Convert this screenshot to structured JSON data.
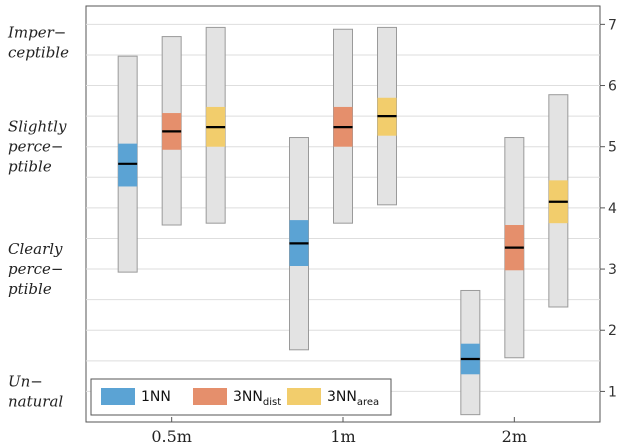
{
  "chart_data": {
    "type": "bar",
    "subtype": "floating-range-with-quartile-box-and-median",
    "categories": [
      "0.5m",
      "1m",
      "2m"
    ],
    "ylim": [
      0.5,
      7.3
    ],
    "yticks": [
      1,
      2,
      3,
      4,
      5,
      6,
      7
    ],
    "y_axis_side": "right",
    "grid": true,
    "level_labels": [
      {
        "lines": [
          "Imper−",
          "ceptible"
        ],
        "value": 6.7
      },
      {
        "lines": [
          "Slightly",
          "perce−",
          "ptible"
        ],
        "value": 5.0
      },
      {
        "lines": [
          "Clearly",
          "perce−",
          "ptible"
        ],
        "value": 3.0
      },
      {
        "lines": [
          "Un−",
          "natural"
        ],
        "value": 1.0
      }
    ],
    "series": [
      {
        "name": "1NN",
        "name_sub": "",
        "color": "#5ba3d4",
        "data": [
          {
            "min": 2.95,
            "q1": 4.35,
            "median": 4.72,
            "q3": 5.05,
            "max": 6.48
          },
          {
            "min": 1.68,
            "q1": 3.05,
            "median": 3.42,
            "q3": 3.8,
            "max": 5.15
          },
          {
            "min": 0.62,
            "q1": 1.28,
            "median": 1.53,
            "q3": 1.78,
            "max": 2.65
          }
        ]
      },
      {
        "name": "3NN",
        "name_sub": "dist",
        "color": "#e58f6c",
        "data": [
          {
            "min": 3.72,
            "q1": 4.95,
            "median": 5.25,
            "q3": 5.55,
            "max": 6.8
          },
          {
            "min": 3.75,
            "q1": 5.0,
            "median": 5.32,
            "q3": 5.65,
            "max": 6.92
          },
          {
            "min": 1.55,
            "q1": 2.98,
            "median": 3.35,
            "q3": 3.72,
            "max": 5.15
          }
        ]
      },
      {
        "name": "3NN",
        "name_sub": "area",
        "color": "#f2cd6c",
        "data": [
          {
            "min": 3.75,
            "q1": 5.0,
            "median": 5.32,
            "q3": 5.65,
            "max": 6.95
          },
          {
            "min": 4.05,
            "q1": 5.18,
            "median": 5.5,
            "q3": 5.8,
            "max": 6.95
          },
          {
            "min": 2.38,
            "q1": 3.75,
            "median": 4.1,
            "q3": 4.45,
            "max": 5.85
          }
        ]
      }
    ],
    "legend_position": "bottom-left"
  }
}
